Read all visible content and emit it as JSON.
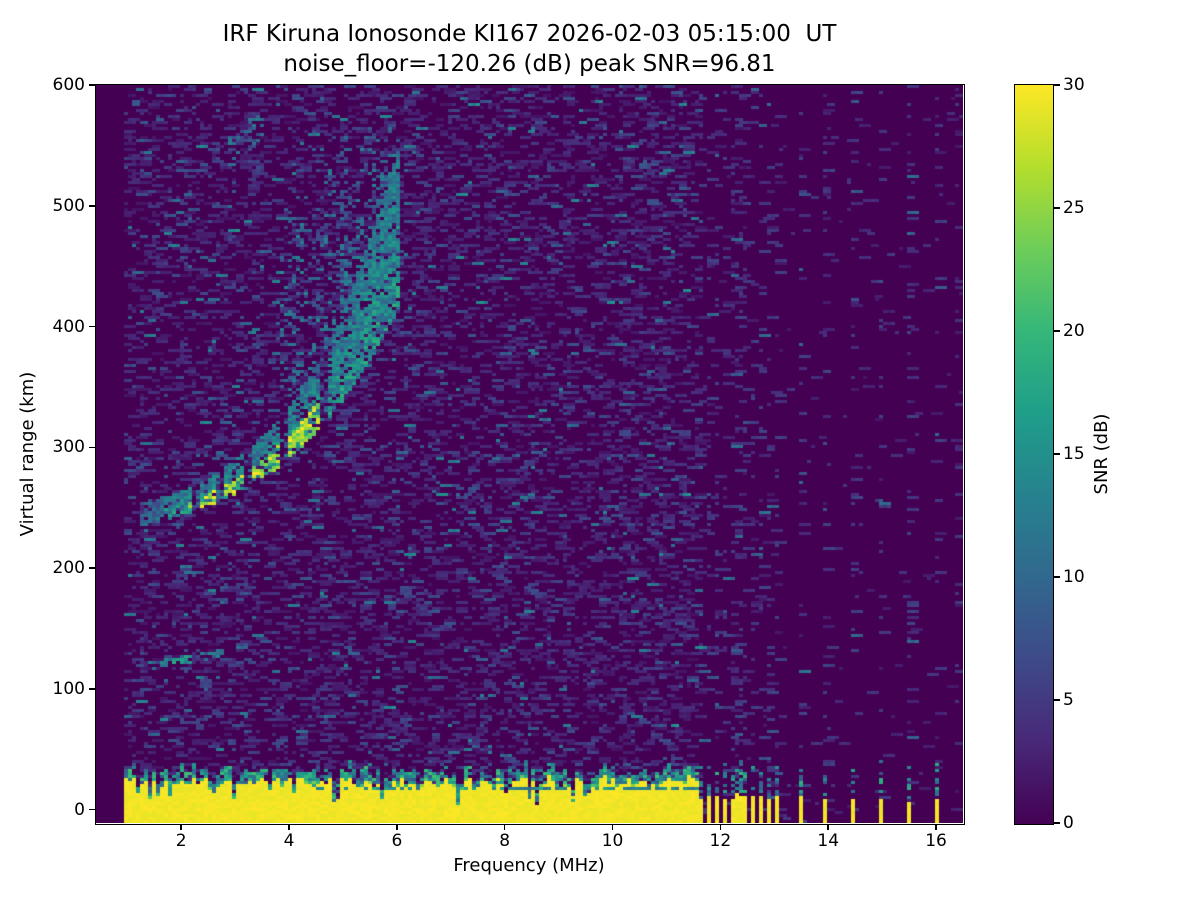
{
  "chart_data": {
    "type": "heatmap",
    "title_line1": "IRF Kiruna Ionosonde KI167 2026-02-03 05:15:00  UT",
    "title_line2": "noise_floor=-120.26 (dB) peak SNR=96.81",
    "station": "KI167",
    "timestamp_ut": "2026-02-03 05:15:00",
    "noise_floor_db": -120.26,
    "peak_snr_db": 96.81,
    "xlabel": "Frequency (MHz)",
    "ylabel": "Virtual range (km)",
    "xlim": [
      0.42,
      16.5
    ],
    "ylim": [
      -11,
      600
    ],
    "xticks": [
      2,
      4,
      6,
      8,
      10,
      12,
      14,
      16
    ],
    "yticks": [
      0,
      100,
      200,
      300,
      400,
      500,
      600
    ],
    "grid": false,
    "colorbar": {
      "label": "SNR (dB)",
      "min": 0,
      "max": 30,
      "ticks": [
        0,
        5,
        10,
        15,
        20,
        25,
        30
      ],
      "colormap": "viridis"
    },
    "features": {
      "seed": 1670203,
      "blank_below_mhz": 0.92,
      "noise": {
        "density_left": 0.42,
        "density_right": 0.022,
        "stripe_density": 0.25
      },
      "ground_band": {
        "f_start": 0.92,
        "f_end": 11.58,
        "yellow_top_km": 23,
        "fringe_km": 9,
        "notch_count": 26,
        "inner_line_km": 16.5
      },
      "rf_stripes": {
        "dense_start": 11.65,
        "dense_step": 0.14,
        "dense_count": 11,
        "sparse": [
          13.47,
          13.97,
          14.45,
          14.95,
          15.47,
          15.99
        ],
        "edge_noise_f": 16.38,
        "yellow_top_km": 11,
        "sparse_yellow_top_km": 9,
        "speckle_top_km": 34
      },
      "f_trace": {
        "f_start": 1.25,
        "f_end": 6.02,
        "base_km": 245,
        "curve": [
          10,
          1,
          1
        ],
        "bottom_offset_km": 10,
        "thickness_km": [
          [
            2.0,
            20
          ],
          [
            3.0,
            28
          ],
          [
            4.0,
            42
          ],
          [
            4.8,
            62
          ],
          [
            5.4,
            95
          ],
          [
            6.02,
            135
          ]
        ],
        "gap_freqs": [
          2.28,
          2.7,
          3.25,
          3.92,
          4.63
        ],
        "bright_f_start": 2.15,
        "bright_f_end": 4.55
      },
      "spread_f": {
        "f_start": 3.85,
        "f_end": 6.05,
        "top_km": 562,
        "dense_cols": [
          5.05,
          5.65
        ]
      },
      "second_hop": {
        "f_start": 2.9,
        "f_end": 3.55,
        "center_km_start": 543,
        "slope_km_per_mhz": 40,
        "half_width_km": 15
      },
      "e_layer": {
        "f_start": 1.38,
        "f_end": 2.97,
        "center_km_start": 119,
        "center_km_end": 131,
        "half_width_km": 3.2
      }
    }
  }
}
